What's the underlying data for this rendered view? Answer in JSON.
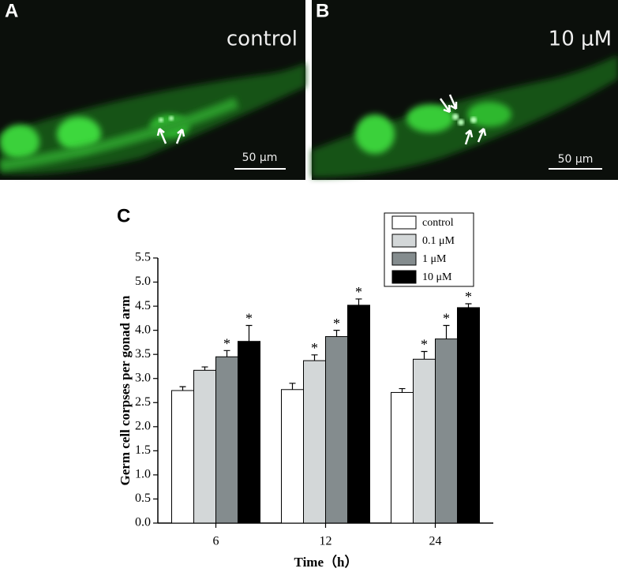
{
  "panels": [
    {
      "label": "A",
      "caption": "control",
      "scale": "50 μm"
    },
    {
      "label": "B",
      "caption": "10 μM",
      "scale": "50 μm"
    }
  ],
  "chart_data": {
    "type": "bar",
    "panel_label": "C",
    "y_label": "Germ cell corpses per gonad arm",
    "x_label": "Time（h）",
    "categories": [
      "6",
      "12",
      "24"
    ],
    "series": [
      {
        "name": "control",
        "color": "#ffffff",
        "values": [
          2.75,
          2.77,
          2.71
        ],
        "errors": [
          0.08,
          0.13,
          0.08
        ],
        "markers": [
          null,
          null,
          null
        ]
      },
      {
        "name": "0.1 μM",
        "color": "#d3d7d8",
        "values": [
          3.17,
          3.37,
          3.4
        ],
        "errors": [
          0.07,
          0.12,
          0.16
        ],
        "markers": [
          null,
          "*",
          "*"
        ]
      },
      {
        "name": "1 μM",
        "color": "#848c8e",
        "values": [
          3.45,
          3.87,
          3.82
        ],
        "errors": [
          0.13,
          0.13,
          0.28
        ],
        "markers": [
          "*",
          "*",
          "*"
        ]
      },
      {
        "name": "10 μM",
        "color": "#000000",
        "values": [
          3.77,
          4.52,
          4.47
        ],
        "errors": [
          0.33,
          0.13,
          0.08
        ],
        "markers": [
          "*",
          "*",
          "*"
        ]
      }
    ],
    "ylim": [
      0,
      5.5
    ],
    "yticks": [
      {
        "value": 0,
        "label": "0.0"
      },
      0.5,
      {
        "value": 1,
        "label": "1.0"
      },
      1.5,
      {
        "value": 2,
        "label": "2.0"
      },
      2.5,
      {
        "value": 3,
        "label": "3.0"
      },
      3.5,
      {
        "value": 4,
        "label": "4.0"
      },
      4.5,
      {
        "value": 5,
        "label": "5.0"
      },
      5.5
    ],
    "legend": "top-right"
  }
}
